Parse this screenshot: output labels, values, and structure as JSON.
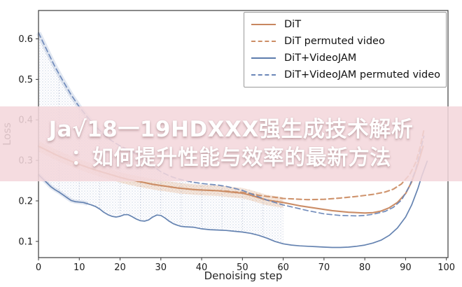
{
  "banner": {
    "line1": "Ja√18一19HDXXX强生成技术解析",
    "line2": "：如何提升性能与效率的最新方法",
    "background": "#f3d6db",
    "text_color": "#ffffff"
  },
  "chart_data": {
    "type": "line",
    "title": "",
    "xlabel": "Denoising step",
    "ylabel": "Loss",
    "xlim": [
      0,
      100.4
    ],
    "ylim": [
      0.06,
      0.67
    ],
    "xticks": [
      0,
      10,
      20,
      30,
      40,
      50,
      60,
      70,
      80,
      90,
      100
    ],
    "yticks": [
      0.1,
      0.2,
      0.3,
      0.4,
      0.5,
      0.6
    ],
    "grid": false,
    "legend_position": "upper right",
    "vlines_x": [
      5,
      10,
      15,
      20,
      25,
      30,
      35,
      40,
      45,
      50,
      55,
      60
    ],
    "stipple_region": {
      "between": [
        "DiT+VideoJAM permuted video",
        "DiT+VideoJAM"
      ],
      "x_end": 60
    },
    "series": [
      {
        "name": "DiT",
        "color": "#c8875f",
        "style": "solid",
        "points": [
          [
            0,
            0.335
          ],
          [
            2,
            0.325
          ],
          [
            4,
            0.315
          ],
          [
            6,
            0.306
          ],
          [
            8,
            0.298
          ],
          [
            10,
            0.29
          ],
          [
            12,
            0.283
          ],
          [
            14,
            0.276
          ],
          [
            16,
            0.27
          ],
          [
            18,
            0.264
          ],
          [
            20,
            0.258
          ],
          [
            22,
            0.253
          ],
          [
            24,
            0.249
          ],
          [
            26,
            0.245
          ],
          [
            28,
            0.241
          ],
          [
            30,
            0.238
          ],
          [
            32,
            0.235
          ],
          [
            34,
            0.232
          ],
          [
            36,
            0.23
          ],
          [
            38,
            0.228
          ],
          [
            40,
            0.227
          ],
          [
            42,
            0.226
          ],
          [
            44,
            0.225
          ],
          [
            46,
            0.223
          ],
          [
            48,
            0.221
          ],
          [
            50,
            0.219
          ],
          [
            52,
            0.214
          ],
          [
            54,
            0.208
          ],
          [
            56,
            0.202
          ],
          [
            58,
            0.199
          ],
          [
            60,
            0.196
          ],
          [
            64,
            0.188
          ],
          [
            68,
            0.182
          ],
          [
            72,
            0.176
          ],
          [
            76,
            0.172
          ],
          [
            80,
            0.17
          ],
          [
            82,
            0.171
          ],
          [
            84,
            0.175
          ],
          [
            86,
            0.183
          ],
          [
            88,
            0.196
          ],
          [
            90,
            0.218
          ],
          [
            91.5,
            0.247
          ],
          [
            93,
            0.29
          ],
          [
            94.3,
            0.335
          ]
        ]
      },
      {
        "name": "DiT permuted video",
        "color": "#cc8e66",
        "style": "dashed",
        "points": [
          [
            0,
            0.335
          ],
          [
            2,
            0.325
          ],
          [
            4,
            0.315
          ],
          [
            6,
            0.306
          ],
          [
            8,
            0.298
          ],
          [
            10,
            0.29
          ],
          [
            12,
            0.283
          ],
          [
            14,
            0.276
          ],
          [
            16,
            0.27
          ],
          [
            18,
            0.264
          ],
          [
            20,
            0.258
          ],
          [
            22,
            0.253
          ],
          [
            24,
            0.249
          ],
          [
            26,
            0.245
          ],
          [
            28,
            0.241
          ],
          [
            30,
            0.238
          ],
          [
            32,
            0.235
          ],
          [
            34,
            0.232
          ],
          [
            36,
            0.23
          ],
          [
            38,
            0.228
          ],
          [
            40,
            0.227
          ],
          [
            42,
            0.226
          ],
          [
            44,
            0.225
          ],
          [
            46,
            0.224
          ],
          [
            48,
            0.222
          ],
          [
            50,
            0.221
          ],
          [
            52,
            0.218
          ],
          [
            54,
            0.214
          ],
          [
            56,
            0.211
          ],
          [
            58,
            0.209
          ],
          [
            60,
            0.206
          ],
          [
            62,
            0.205
          ],
          [
            66,
            0.203
          ],
          [
            70,
            0.204
          ],
          [
            74,
            0.207
          ],
          [
            78,
            0.211
          ],
          [
            82,
            0.216
          ],
          [
            85,
            0.222
          ],
          [
            87,
            0.229
          ],
          [
            89,
            0.242
          ],
          [
            91,
            0.265
          ],
          [
            92.5,
            0.295
          ],
          [
            93.5,
            0.33
          ],
          [
            94.5,
            0.375
          ]
        ]
      },
      {
        "name": "DiT+VideoJAM",
        "color": "#5d7cad",
        "style": "solid",
        "points": [
          [
            0,
            0.265
          ],
          [
            1,
            0.255
          ],
          [
            2,
            0.245
          ],
          [
            3,
            0.235
          ],
          [
            4,
            0.228
          ],
          [
            5,
            0.222
          ],
          [
            6,
            0.215
          ],
          [
            7,
            0.208
          ],
          [
            8,
            0.201
          ],
          [
            9,
            0.198
          ],
          [
            10,
            0.197
          ],
          [
            11,
            0.196
          ],
          [
            12,
            0.193
          ],
          [
            13,
            0.19
          ],
          [
            14,
            0.186
          ],
          [
            15,
            0.18
          ],
          [
            16,
            0.172
          ],
          [
            17,
            0.166
          ],
          [
            18,
            0.162
          ],
          [
            19,
            0.16
          ],
          [
            20,
            0.162
          ],
          [
            21,
            0.166
          ],
          [
            22,
            0.166
          ],
          [
            23,
            0.161
          ],
          [
            24,
            0.155
          ],
          [
            25,
            0.151
          ],
          [
            26,
            0.15
          ],
          [
            27,
            0.153
          ],
          [
            28,
            0.16
          ],
          [
            29,
            0.165
          ],
          [
            30,
            0.164
          ],
          [
            31,
            0.158
          ],
          [
            32,
            0.15
          ],
          [
            33,
            0.144
          ],
          [
            34,
            0.14
          ],
          [
            35,
            0.137
          ],
          [
            36,
            0.136
          ],
          [
            38,
            0.135
          ],
          [
            40,
            0.131
          ],
          [
            42,
            0.129
          ],
          [
            44,
            0.128
          ],
          [
            46,
            0.127
          ],
          [
            48,
            0.125
          ],
          [
            50,
            0.123
          ],
          [
            52,
            0.12
          ],
          [
            54,
            0.115
          ],
          [
            56,
            0.108
          ],
          [
            58,
            0.1
          ],
          [
            60,
            0.094
          ],
          [
            62,
            0.091
          ],
          [
            64,
            0.089
          ],
          [
            66,
            0.088
          ],
          [
            68,
            0.087
          ],
          [
            70,
            0.086
          ],
          [
            72,
            0.085
          ],
          [
            74,
            0.085
          ],
          [
            76,
            0.086
          ],
          [
            78,
            0.088
          ],
          [
            80,
            0.091
          ],
          [
            82,
            0.096
          ],
          [
            84,
            0.103
          ],
          [
            86,
            0.115
          ],
          [
            88,
            0.133
          ],
          [
            90,
            0.16
          ],
          [
            91.5,
            0.19
          ],
          [
            93,
            0.23
          ],
          [
            94,
            0.262
          ],
          [
            95.3,
            0.298
          ]
        ]
      },
      {
        "name": "DiT+VideoJAM permuted video",
        "color": "#6b87b8",
        "style": "dashed",
        "points": [
          [
            0,
            0.615
          ],
          [
            2,
            0.573
          ],
          [
            4,
            0.532
          ],
          [
            6,
            0.496
          ],
          [
            8,
            0.462
          ],
          [
            10,
            0.432
          ],
          [
            12,
            0.407
          ],
          [
            14,
            0.384
          ],
          [
            16,
            0.364
          ],
          [
            18,
            0.348
          ],
          [
            20,
            0.336
          ],
          [
            22,
            0.326
          ],
          [
            24,
            0.316
          ],
          [
            26,
            0.302
          ],
          [
            28,
            0.286
          ],
          [
            30,
            0.272
          ],
          [
            32,
            0.262
          ],
          [
            34,
            0.255
          ],
          [
            36,
            0.25
          ],
          [
            38,
            0.246
          ],
          [
            40,
            0.243
          ],
          [
            42,
            0.241
          ],
          [
            44,
            0.239
          ],
          [
            46,
            0.236
          ],
          [
            48,
            0.231
          ],
          [
            50,
            0.226
          ],
          [
            52,
            0.218
          ],
          [
            54,
            0.21
          ],
          [
            56,
            0.202
          ],
          [
            58,
            0.196
          ],
          [
            60,
            0.19
          ],
          [
            63,
            0.183
          ],
          [
            66,
            0.176
          ],
          [
            70,
            0.168
          ],
          [
            74,
            0.164
          ],
          [
            78,
            0.163
          ],
          [
            80,
            0.164
          ],
          [
            82,
            0.167
          ],
          [
            85,
            0.174
          ],
          [
            87,
            0.184
          ],
          [
            89,
            0.202
          ],
          [
            91,
            0.237
          ],
          [
            92.5,
            0.278
          ],
          [
            93.5,
            0.318
          ],
          [
            94.5,
            0.36
          ]
        ]
      }
    ]
  }
}
